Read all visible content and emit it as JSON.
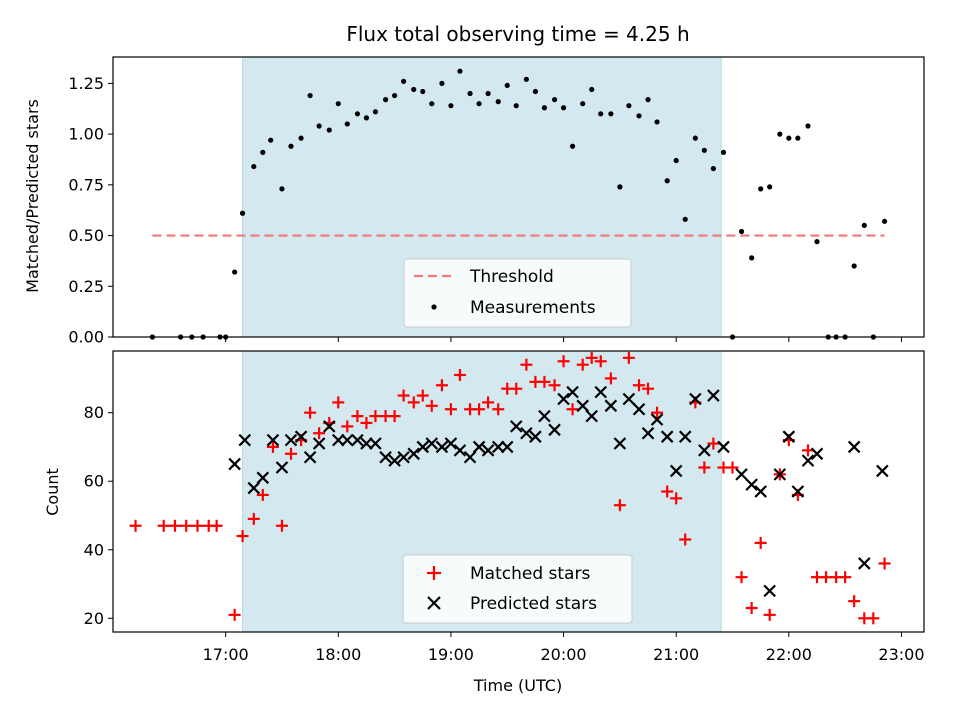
{
  "chart_data": [
    {
      "type": "scatter",
      "title": "Flux total observing time = 4.25 h",
      "ylabel": "Matched/Predicted stars",
      "xlabel": "",
      "ylim": [
        0.0,
        1.38
      ],
      "yticks": [
        "0.00",
        "0.25",
        "0.50",
        "0.75",
        "1.00",
        "1.25"
      ],
      "x_unit": "hours UTC",
      "shaded_interval": {
        "start": 17.15,
        "end": 21.4,
        "color": "#d3e9ef"
      },
      "threshold": {
        "name": "Threshold",
        "value": 0.5,
        "x_start": 16.35,
        "x_end": 22.85,
        "color": "#f07878"
      },
      "series": [
        {
          "name": "Measurements",
          "color": "#000000",
          "points": [
            [
              16.35,
              0.0
            ],
            [
              16.6,
              0.0
            ],
            [
              16.7,
              0.0
            ],
            [
              16.8,
              0.0
            ],
            [
              16.95,
              0.0
            ],
            [
              17.0,
              0.0
            ],
            [
              17.08,
              0.32
            ],
            [
              17.15,
              0.61
            ],
            [
              17.25,
              0.84
            ],
            [
              17.33,
              0.91
            ],
            [
              17.4,
              0.97
            ],
            [
              17.5,
              0.73
            ],
            [
              17.58,
              0.94
            ],
            [
              17.67,
              0.98
            ],
            [
              17.75,
              1.19
            ],
            [
              17.83,
              1.04
            ],
            [
              17.92,
              1.02
            ],
            [
              18.0,
              1.15
            ],
            [
              18.08,
              1.05
            ],
            [
              18.17,
              1.1
            ],
            [
              18.25,
              1.08
            ],
            [
              18.33,
              1.11
            ],
            [
              18.42,
              1.17
            ],
            [
              18.5,
              1.19
            ],
            [
              18.58,
              1.26
            ],
            [
              18.67,
              1.22
            ],
            [
              18.75,
              1.21
            ],
            [
              18.83,
              1.15
            ],
            [
              18.92,
              1.25
            ],
            [
              19.0,
              1.14
            ],
            [
              19.08,
              1.31
            ],
            [
              19.17,
              1.2
            ],
            [
              19.25,
              1.15
            ],
            [
              19.33,
              1.2
            ],
            [
              19.42,
              1.16
            ],
            [
              19.5,
              1.24
            ],
            [
              19.58,
              1.14
            ],
            [
              19.67,
              1.27
            ],
            [
              19.75,
              1.21
            ],
            [
              19.83,
              1.13
            ],
            [
              19.92,
              1.17
            ],
            [
              20.0,
              1.13
            ],
            [
              20.08,
              0.94
            ],
            [
              20.17,
              1.15
            ],
            [
              20.25,
              1.22
            ],
            [
              20.33,
              1.1
            ],
            [
              20.42,
              1.1
            ],
            [
              20.5,
              0.74
            ],
            [
              20.58,
              1.14
            ],
            [
              20.67,
              1.09
            ],
            [
              20.75,
              1.17
            ],
            [
              20.83,
              1.06
            ],
            [
              20.92,
              0.77
            ],
            [
              21.0,
              0.87
            ],
            [
              21.08,
              0.58
            ],
            [
              21.17,
              0.98
            ],
            [
              21.25,
              0.92
            ],
            [
              21.33,
              0.83
            ],
            [
              21.42,
              0.91
            ],
            [
              21.5,
              0.0
            ],
            [
              21.58,
              0.52
            ],
            [
              21.67,
              0.39
            ],
            [
              21.75,
              0.73
            ],
            [
              21.83,
              0.74
            ],
            [
              21.92,
              1.0
            ],
            [
              22.0,
              0.98
            ],
            [
              22.08,
              0.98
            ],
            [
              22.17,
              1.04
            ],
            [
              22.25,
              0.47
            ],
            [
              22.35,
              0.0
            ],
            [
              22.42,
              0.0
            ],
            [
              22.5,
              0.0
            ],
            [
              22.58,
              0.35
            ],
            [
              22.67,
              0.55
            ],
            [
              22.75,
              0.0
            ],
            [
              22.85,
              0.57
            ]
          ]
        }
      ],
      "legend": {
        "position": "lower center",
        "entries": [
          "Threshold",
          "Measurements"
        ]
      }
    },
    {
      "type": "scatter",
      "title": "",
      "xlabel": "Time (UTC)",
      "ylabel": "Count",
      "ylim": [
        16,
        98
      ],
      "yticks": [
        "20",
        "40",
        "60",
        "80"
      ],
      "xticks": [
        "17:00",
        "18:00",
        "19:00",
        "20:00",
        "21:00",
        "22:00",
        "23:00"
      ],
      "xlim": [
        16.0,
        23.2
      ],
      "shaded_interval": {
        "start": 17.15,
        "end": 21.4,
        "color": "#d3e9ef"
      },
      "series": [
        {
          "name": "Matched stars",
          "marker": "plus",
          "color": "#ff0000",
          "points": [
            [
              16.2,
              47
            ],
            [
              16.45,
              47
            ],
            [
              16.55,
              47
            ],
            [
              16.65,
              47
            ],
            [
              16.75,
              47
            ],
            [
              16.85,
              47
            ],
            [
              16.92,
              47
            ],
            [
              17.08,
              21
            ],
            [
              17.15,
              44
            ],
            [
              17.25,
              49
            ],
            [
              17.33,
              56
            ],
            [
              17.42,
              70
            ],
            [
              17.5,
              47
            ],
            [
              17.58,
              68
            ],
            [
              17.67,
              72
            ],
            [
              17.75,
              80
            ],
            [
              17.83,
              74
            ],
            [
              17.92,
              77
            ],
            [
              18.0,
              83
            ],
            [
              18.08,
              76
            ],
            [
              18.17,
              79
            ],
            [
              18.25,
              77
            ],
            [
              18.33,
              79
            ],
            [
              18.42,
              79
            ],
            [
              18.5,
              79
            ],
            [
              18.58,
              85
            ],
            [
              18.67,
              83
            ],
            [
              18.75,
              85
            ],
            [
              18.83,
              82
            ],
            [
              18.92,
              88
            ],
            [
              19.0,
              81
            ],
            [
              19.08,
              91
            ],
            [
              19.17,
              81
            ],
            [
              19.25,
              81
            ],
            [
              19.33,
              83
            ],
            [
              19.42,
              81
            ],
            [
              19.5,
              87
            ],
            [
              19.58,
              87
            ],
            [
              19.67,
              94
            ],
            [
              19.75,
              89
            ],
            [
              19.83,
              89
            ],
            [
              19.92,
              88
            ],
            [
              20.0,
              95
            ],
            [
              20.08,
              81
            ],
            [
              20.17,
              94
            ],
            [
              20.25,
              96
            ],
            [
              20.33,
              95
            ],
            [
              20.42,
              90
            ],
            [
              20.5,
              53
            ],
            [
              20.58,
              96
            ],
            [
              20.67,
              88
            ],
            [
              20.75,
              87
            ],
            [
              20.83,
              80
            ],
            [
              20.92,
              57
            ],
            [
              21.0,
              55
            ],
            [
              21.08,
              43
            ],
            [
              21.17,
              83
            ],
            [
              21.25,
              64
            ],
            [
              21.33,
              71
            ],
            [
              21.42,
              64
            ],
            [
              21.5,
              64
            ],
            [
              21.58,
              32
            ],
            [
              21.67,
              23
            ],
            [
              21.75,
              42
            ],
            [
              21.83,
              21
            ],
            [
              21.92,
              62
            ],
            [
              22.0,
              72
            ],
            [
              22.08,
              56
            ],
            [
              22.17,
              69
            ],
            [
              22.25,
              32
            ],
            [
              22.33,
              32
            ],
            [
              22.42,
              32
            ],
            [
              22.5,
              32
            ],
            [
              22.58,
              25
            ],
            [
              22.67,
              20
            ],
            [
              22.75,
              20
            ],
            [
              22.85,
              36
            ]
          ]
        },
        {
          "name": "Predicted stars",
          "marker": "x",
          "color": "#000000",
          "points": [
            [
              17.08,
              65
            ],
            [
              17.17,
              72
            ],
            [
              17.25,
              58
            ],
            [
              17.33,
              61
            ],
            [
              17.42,
              72
            ],
            [
              17.5,
              64
            ],
            [
              17.58,
              72
            ],
            [
              17.67,
              73
            ],
            [
              17.75,
              67
            ],
            [
              17.83,
              71
            ],
            [
              17.92,
              76
            ],
            [
              18.0,
              72
            ],
            [
              18.08,
              72
            ],
            [
              18.17,
              72
            ],
            [
              18.25,
              71
            ],
            [
              18.33,
              71
            ],
            [
              18.42,
              67
            ],
            [
              18.5,
              66
            ],
            [
              18.58,
              67
            ],
            [
              18.67,
              68
            ],
            [
              18.75,
              70
            ],
            [
              18.83,
              71
            ],
            [
              18.92,
              70
            ],
            [
              19.0,
              71
            ],
            [
              19.08,
              69
            ],
            [
              19.17,
              67
            ],
            [
              19.25,
              70
            ],
            [
              19.33,
              69
            ],
            [
              19.42,
              70
            ],
            [
              19.5,
              70
            ],
            [
              19.58,
              76
            ],
            [
              19.67,
              74
            ],
            [
              19.75,
              73
            ],
            [
              19.83,
              79
            ],
            [
              19.92,
              75
            ],
            [
              20.0,
              84
            ],
            [
              20.08,
              86
            ],
            [
              20.17,
              82
            ],
            [
              20.25,
              79
            ],
            [
              20.33,
              86
            ],
            [
              20.42,
              82
            ],
            [
              20.5,
              71
            ],
            [
              20.58,
              84
            ],
            [
              20.67,
              81
            ],
            [
              20.75,
              74
            ],
            [
              20.83,
              78
            ],
            [
              20.92,
              73
            ],
            [
              21.0,
              63
            ],
            [
              21.08,
              73
            ],
            [
              21.17,
              84
            ],
            [
              21.25,
              69
            ],
            [
              21.33,
              85
            ],
            [
              21.42,
              70
            ],
            [
              21.58,
              62
            ],
            [
              21.67,
              59
            ],
            [
              21.75,
              57
            ],
            [
              21.83,
              28
            ],
            [
              21.92,
              62
            ],
            [
              22.0,
              73
            ],
            [
              22.08,
              57
            ],
            [
              22.17,
              66
            ],
            [
              22.25,
              68
            ],
            [
              22.58,
              70
            ],
            [
              22.67,
              36
            ],
            [
              22.83,
              63
            ]
          ]
        }
      ],
      "legend": {
        "position": "lower center",
        "entries": [
          "Matched stars",
          "Predicted stars"
        ]
      }
    }
  ]
}
